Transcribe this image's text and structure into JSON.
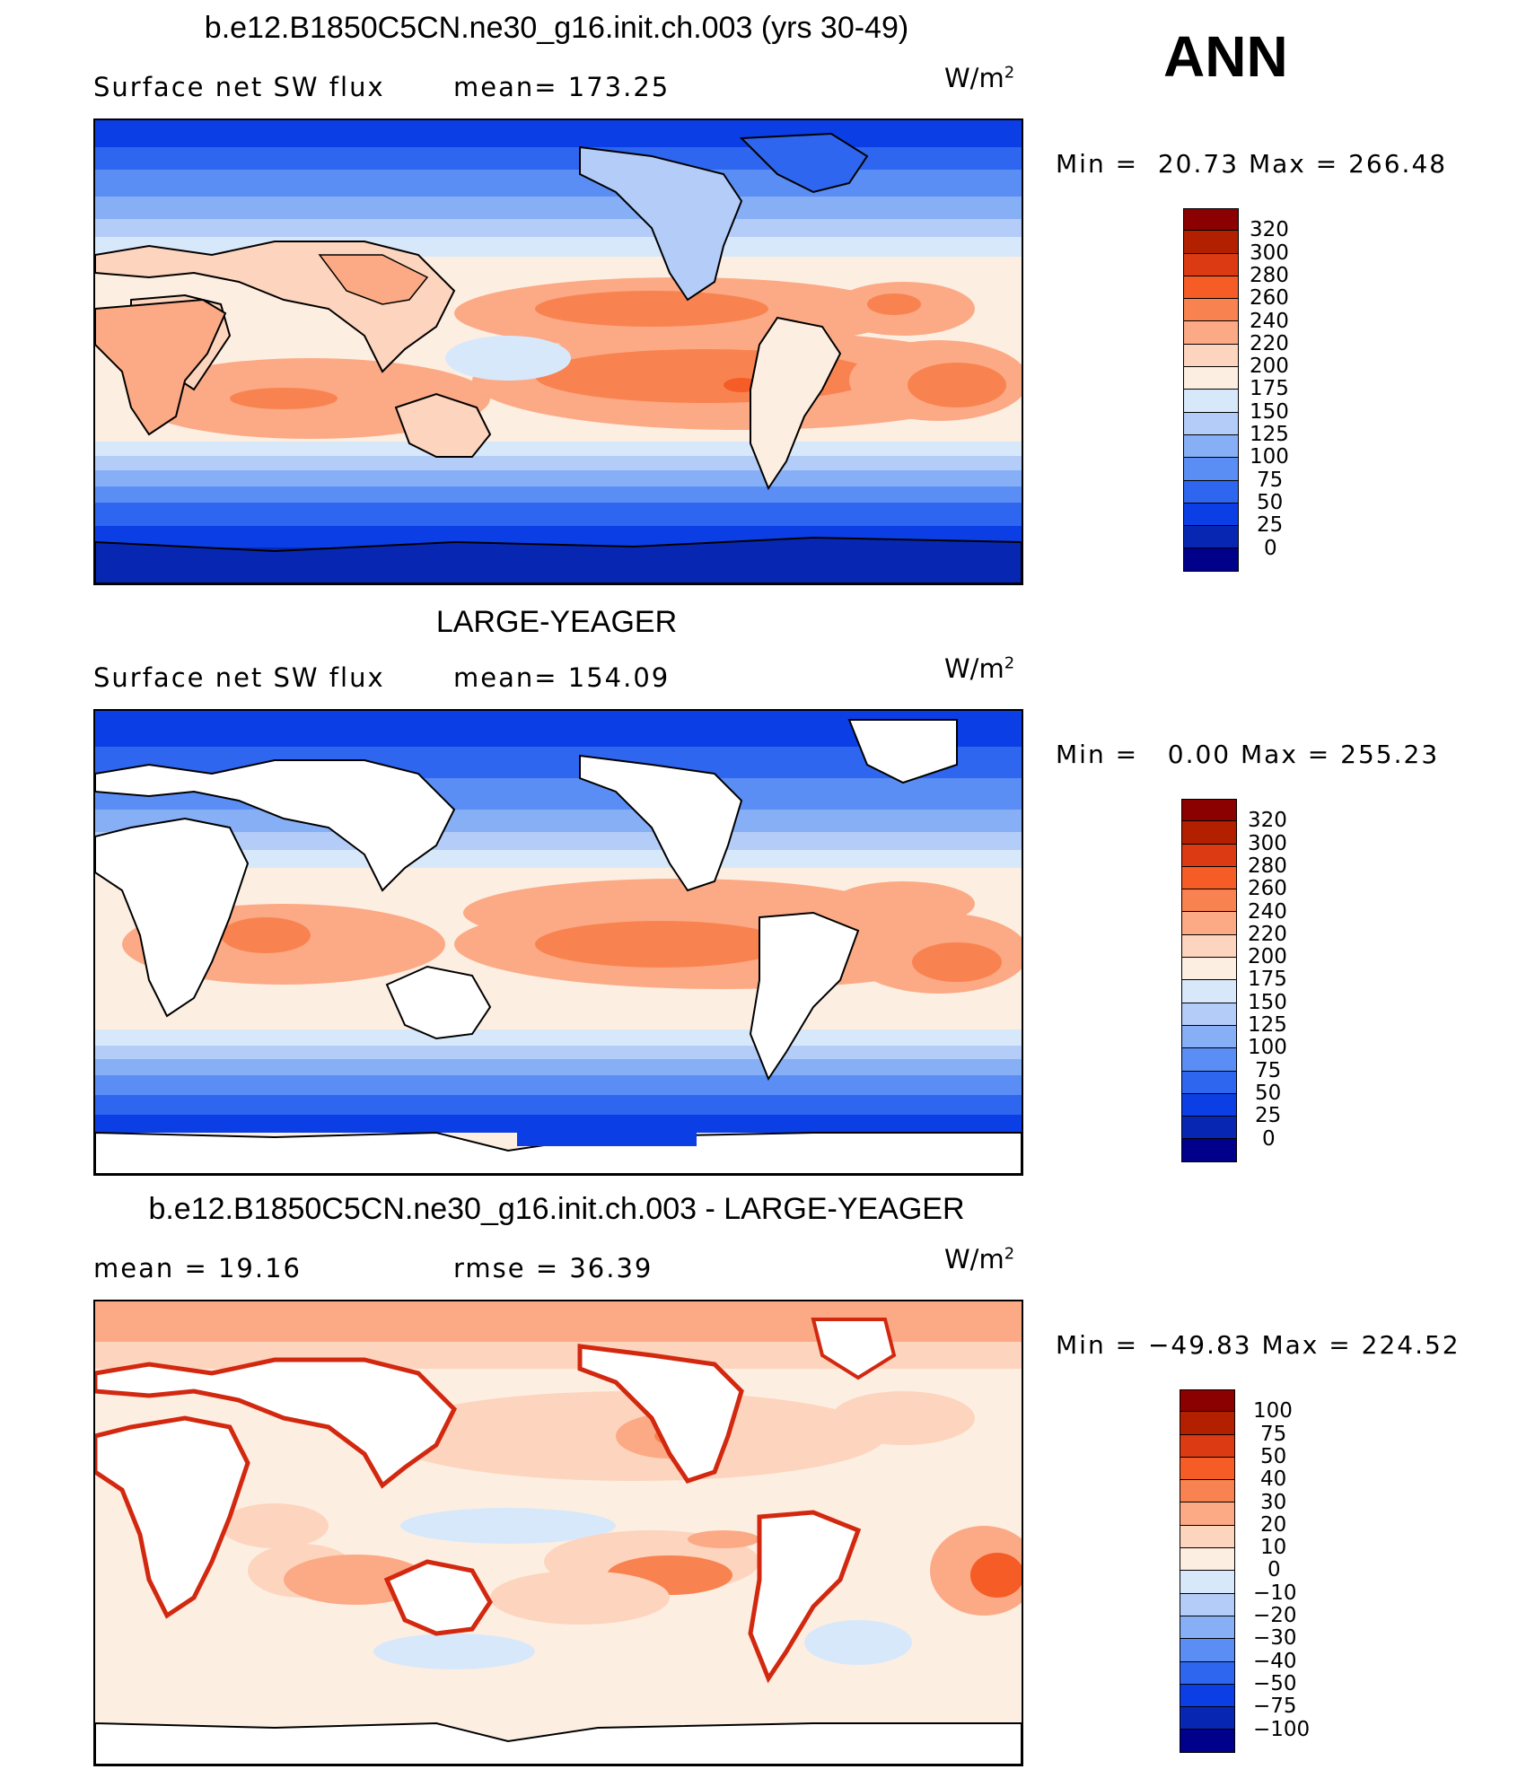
{
  "season": "ANN",
  "panels": [
    {
      "id": "model",
      "title": "b.e12.B1850C5CN.ne30_g16.init.ch.003 (yrs 30-49)",
      "left_label": "Surface net SW flux",
      "stat_label": "mean=",
      "stat_value": "173.25",
      "units": "W/m",
      "units_sup": "2",
      "min_label": "Min =",
      "min_value": "20.73",
      "max_label": "Max =",
      "max_value": "266.48",
      "colorbar_labels": [
        "320",
        "300",
        "280",
        "260",
        "240",
        "220",
        "200",
        "175",
        "150",
        "125",
        "100",
        "75",
        "50",
        "25",
        "0"
      ],
      "land_masked": false
    },
    {
      "id": "obs",
      "title": "LARGE-YEAGER",
      "left_label": "Surface net SW flux",
      "stat_label": "mean=",
      "stat_value": "154.09",
      "units": "W/m",
      "units_sup": "2",
      "min_label": "Min =",
      "min_value": "0.00",
      "max_label": "Max =",
      "max_value": "255.23",
      "colorbar_labels": [
        "320",
        "300",
        "280",
        "260",
        "240",
        "220",
        "200",
        "175",
        "150",
        "125",
        "100",
        "75",
        "50",
        "25",
        "0"
      ],
      "land_masked": true
    },
    {
      "id": "diff",
      "title": "b.e12.B1850C5CN.ne30_g16.init.ch.003 - LARGE-YEAGER",
      "left_label": "mean =",
      "left_value": "19.16",
      "stat_label": "rmse =",
      "stat_value": "36.39",
      "units": "W/m",
      "units_sup": "2",
      "min_label": "Min =",
      "min_value": "−49.83",
      "max_label": "Max =",
      "max_value": "224.52",
      "colorbar_labels": [
        "100",
        "75",
        "50",
        "40",
        "30",
        "20",
        "10",
        "0",
        "−10",
        "−20",
        "−30",
        "−40",
        "−50",
        "−75",
        "−100"
      ],
      "land_masked": true
    }
  ],
  "colors": {
    "palette": [
      "#8b0000",
      "#b22000",
      "#db3a12",
      "#f55c26",
      "#f98350",
      "#fbaa85",
      "#fdd4bd",
      "#fdeee2",
      "#d8e8fb",
      "#b4cdf8",
      "#87aff6",
      "#5b8ef4",
      "#2f66ef",
      "#0b3fe5",
      "#0727b3",
      "#00008b"
    ],
    "land": "#ffffff",
    "coast": "#000000"
  }
}
